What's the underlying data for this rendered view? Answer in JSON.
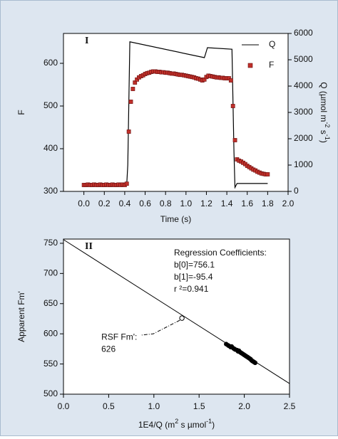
{
  "chart_data": [
    {
      "type": "combo",
      "panel_label": "I",
      "xlabel": "Time (s)",
      "ylabel": "F",
      "y2label": [
        "Q (µmol m",
        "-2",
        " s",
        "-1",
        ")"
      ],
      "xlim": [
        -0.2,
        2.0
      ],
      "ylim": [
        300,
        670
      ],
      "y2lim": [
        0,
        6000
      ],
      "xticks": [
        {
          "value": 0,
          "label": "0.0"
        },
        0.2,
        0.4,
        0.6,
        0.8,
        {
          "value": 1,
          "label": "1.0"
        },
        1.2,
        1.4,
        1.6,
        1.8,
        {
          "value": 2,
          "label": "2.0"
        }
      ],
      "yticks": [
        300,
        400,
        500,
        600
      ],
      "y2ticks": [
        0,
        1000,
        2000,
        3000,
        4000,
        5000,
        6000
      ],
      "legend": "upper right",
      "series": [
        {
          "name": "Q",
          "kind": "line",
          "axis": "y2",
          "color": "#000000",
          "x": [
            0.0,
            0.42,
            0.43,
            0.45,
            1.18,
            1.19,
            1.21,
            1.45,
            1.47,
            1.48,
            1.5,
            1.8
          ],
          "values": [
            300,
            300,
            1000,
            5680,
            5080,
            5200,
            5460,
            5400,
            1500,
            150,
            300,
            300
          ]
        },
        {
          "name": "F",
          "kind": "scatter",
          "color": "#c0302a",
          "x": [
            0.0,
            0.02,
            0.04,
            0.06,
            0.08,
            0.1,
            0.12,
            0.14,
            0.16,
            0.18,
            0.2,
            0.22,
            0.24,
            0.26,
            0.28,
            0.3,
            0.32,
            0.34,
            0.36,
            0.38,
            0.4,
            0.42,
            0.44,
            0.46,
            0.48,
            0.5,
            0.52,
            0.54,
            0.56,
            0.58,
            0.6,
            0.62,
            0.64,
            0.66,
            0.68,
            0.7,
            0.72,
            0.74,
            0.76,
            0.78,
            0.8,
            0.82,
            0.84,
            0.86,
            0.88,
            0.9,
            0.92,
            0.94,
            0.96,
            0.98,
            1.0,
            1.02,
            1.04,
            1.06,
            1.08,
            1.1,
            1.12,
            1.14,
            1.16,
            1.18,
            1.2,
            1.22,
            1.24,
            1.26,
            1.28,
            1.3,
            1.32,
            1.34,
            1.36,
            1.38,
            1.4,
            1.42,
            1.44,
            1.46,
            1.48,
            1.5,
            1.52,
            1.54,
            1.56,
            1.58,
            1.6,
            1.62,
            1.64,
            1.66,
            1.68,
            1.7,
            1.72,
            1.74,
            1.76,
            1.78,
            1.8
          ],
          "values": [
            315,
            315,
            316,
            315,
            315,
            316,
            315,
            315,
            316,
            315,
            315,
            316,
            315,
            315,
            316,
            315,
            315,
            316,
            315,
            316,
            315,
            318,
            440,
            510,
            540,
            555,
            562,
            567,
            570,
            572,
            575,
            577,
            578,
            580,
            581,
            581,
            580,
            580,
            579,
            579,
            578,
            578,
            577,
            576,
            576,
            575,
            574,
            573,
            573,
            572,
            571,
            570,
            569,
            568,
            567,
            565,
            564,
            562,
            560,
            562,
            568,
            571,
            570,
            569,
            568,
            567,
            567,
            566,
            566,
            565,
            565,
            565,
            560,
            500,
            420,
            375,
            372,
            370,
            367,
            364,
            360,
            357,
            354,
            351,
            349,
            346,
            344,
            342,
            341,
            340,
            340
          ]
        }
      ]
    },
    {
      "type": "scatter",
      "panel_label": "II",
      "xlabel": [
        "1E4/Q (m",
        "2",
        " s µmol",
        "-1",
        ")"
      ],
      "ylabel": "Apparent Fm'",
      "xlim": [
        0,
        2.5
      ],
      "ylim": [
        500,
        757
      ],
      "xticks": [
        {
          "value": 0,
          "label": "0.0"
        },
        0.5,
        {
          "value": 1,
          "label": "1.0"
        },
        1.5,
        {
          "value": 2,
          "label": "2.0"
        },
        2.5
      ],
      "yticks": [
        500,
        550,
        600,
        650,
        700,
        750
      ],
      "series": [
        {
          "color": "#000000",
          "x": [
            1.8,
            1.82,
            1.83,
            1.85,
            1.86,
            1.88,
            1.89,
            1.9,
            1.92,
            1.93,
            1.94,
            1.95,
            1.96,
            1.97,
            1.98,
            1.99,
            2.0,
            2.01,
            2.02,
            2.03,
            2.04,
            2.05,
            2.06,
            2.07,
            2.08,
            2.09,
            2.1,
            2.11,
            2.12
          ],
          "values": [
            583,
            581,
            580,
            578,
            579,
            576,
            575,
            574,
            573,
            571,
            572,
            570,
            569,
            568,
            567,
            566,
            565,
            564,
            563,
            562,
            561,
            560,
            559,
            558,
            556,
            555,
            554,
            553,
            552
          ]
        }
      ],
      "regression": {
        "heading": "Regression Coefficients:",
        "b0": {
          "value": 756.1,
          "label": "b[0]=756.1"
        },
        "b1": {
          "value": -95.4,
          "label": "b[1]=-95.4"
        },
        "r2": {
          "value": 0.941,
          "label": "r ²=0.941"
        }
      },
      "rsf": {
        "label": "RSF Fm':",
        "x": 1.31,
        "value": 626
      }
    }
  ]
}
